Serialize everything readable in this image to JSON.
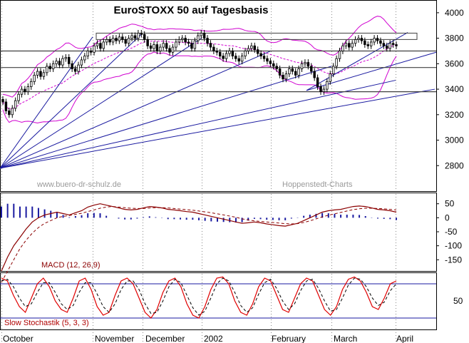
{
  "chart_data": [
    {
      "panel": "price",
      "type": "candlestick",
      "title": "EuroSTOXX 50 auf Tagesbasis",
      "watermark_left": "www.buero-dr-schulz.de",
      "watermark_right": "Hoppenstedt-Charts",
      "ylim": [
        2600,
        4100
      ],
      "yticks": [
        2800,
        3000,
        3200,
        3400,
        3600,
        3800,
        4000
      ],
      "x_axis_labels": [
        "October",
        "November",
        "December",
        "2002",
        "February",
        "March",
        "April"
      ],
      "close_series": {
        "name": "EuroSTOXX 50",
        "values": [
          3300,
          3230,
          3200,
          3250,
          3310,
          3360,
          3400,
          3380,
          3420,
          3460,
          3510,
          3540,
          3500,
          3530,
          3580,
          3560,
          3600,
          3620,
          3590,
          3640,
          3650,
          3600,
          3560,
          3540,
          3590,
          3630,
          3660,
          3700,
          3690,
          3740,
          3760,
          3720,
          3770,
          3790,
          3770,
          3800,
          3780,
          3810,
          3790,
          3760,
          3800,
          3820,
          3800,
          3840,
          3830,
          3790,
          3740,
          3720,
          3750,
          3700,
          3730,
          3760,
          3720,
          3690,
          3730,
          3770,
          3790,
          3800,
          3770,
          3760,
          3720,
          3780,
          3820,
          3840,
          3800,
          3760,
          3730,
          3700,
          3690,
          3660,
          3640,
          3680,
          3700,
          3660,
          3640,
          3620,
          3660,
          3700,
          3720,
          3740,
          3710,
          3680,
          3660,
          3640,
          3620,
          3600,
          3580,
          3560,
          3510,
          3480,
          3520,
          3560,
          3540,
          3510,
          3560,
          3600,
          3610,
          3580,
          3540,
          3490,
          3420,
          3380,
          3400,
          3460,
          3520,
          3580,
          3640,
          3700,
          3740,
          3760,
          3730,
          3760,
          3790,
          3800,
          3780,
          3750,
          3740,
          3770,
          3800,
          3780,
          3760,
          3740,
          3720,
          3760,
          3750,
          3740
        ]
      },
      "horizontal_levels": [
        3380,
        3570,
        3700
      ],
      "resistance_box": [
        3790,
        3840
      ],
      "bollinger_bands": true,
      "fan_lines": true,
      "grid": "vertical dotted"
    },
    {
      "panel": "macd",
      "type": "line+histogram",
      "label": "MACD (12, 26,9)",
      "ylim": [
        -190,
        90
      ],
      "yticks": [
        50,
        0,
        -50,
        -100,
        -150
      ],
      "series": [
        {
          "name": "MACD (12, 26,9)",
          "values": [
            -190,
            -140,
            -100,
            -70,
            -40,
            -15,
            0,
            10,
            15,
            20,
            15,
            10,
            18,
            25,
            38,
            45,
            50,
            45,
            40,
            35,
            30,
            28,
            30,
            35,
            40,
            38,
            35,
            30,
            28,
            25,
            22,
            20,
            15,
            10,
            5,
            0,
            -5,
            -10,
            -15,
            -20,
            -18,
            -15,
            -18,
            -22,
            -25,
            -28,
            -30,
            -25,
            -20,
            -10,
            0,
            10,
            20,
            25,
            28,
            30,
            35,
            40,
            42,
            40,
            35,
            30,
            28,
            25,
            20
          ]
        },
        {
          "name": "Signal",
          "values": [
            -230,
            -190,
            -150,
            -110,
            -80,
            -55,
            -35,
            -20,
            -10,
            0,
            5,
            8,
            12,
            16,
            22,
            28,
            34,
            38,
            40,
            38,
            36,
            34,
            33,
            33,
            35,
            36,
            36,
            35,
            33,
            31,
            29,
            27,
            24,
            21,
            18,
            14,
            10,
            6,
            2,
            -4,
            -8,
            -11,
            -13,
            -15,
            -17,
            -19,
            -21,
            -22,
            -21,
            -17,
            -11,
            -4,
            3,
            9,
            14,
            19,
            24,
            29,
            32,
            34,
            34,
            33,
            32,
            30,
            28
          ]
        }
      ]
    },
    {
      "panel": "stochastic",
      "type": "line",
      "label": "Slow Stochastik (5, 3, 3)",
      "ylim": [
        0,
        100
      ],
      "yticks": [
        50
      ],
      "levels": [
        20,
        80
      ],
      "series": [
        {
          "name": "Slow Stochastik (5, 3, 3)",
          "values": [
            90,
            85,
            60,
            40,
            30,
            55,
            80,
            90,
            75,
            50,
            35,
            30,
            55,
            85,
            90,
            70,
            40,
            25,
            30,
            60,
            85,
            90,
            80,
            55,
            30,
            20,
            35,
            65,
            85,
            90,
            75,
            45,
            25,
            20,
            40,
            70,
            90,
            92,
            80,
            50,
            30,
            25,
            45,
            75,
            90,
            85,
            60,
            35,
            30,
            55,
            80,
            90,
            85,
            60,
            35,
            25,
            40,
            70,
            88,
            92,
            85,
            65,
            40,
            35,
            55,
            80,
            85
          ]
        },
        {
          "name": "Signal",
          "values": [
            85,
            88,
            75,
            55,
            40,
            45,
            65,
            82,
            82,
            65,
            45,
            35,
            42,
            65,
            82,
            82,
            62,
            40,
            30,
            45,
            70,
            85,
            85,
            70,
            45,
            28,
            30,
            50,
            75,
            88,
            82,
            60,
            38,
            25,
            32,
            55,
            80,
            90,
            85,
            65,
            42,
            30,
            38,
            62,
            82,
            88,
            72,
            50,
            35,
            45,
            68,
            85,
            88,
            72,
            50,
            32,
            35,
            55,
            78,
            90,
            88,
            75,
            55,
            42,
            48,
            68,
            80
          ]
        }
      ]
    }
  ]
}
